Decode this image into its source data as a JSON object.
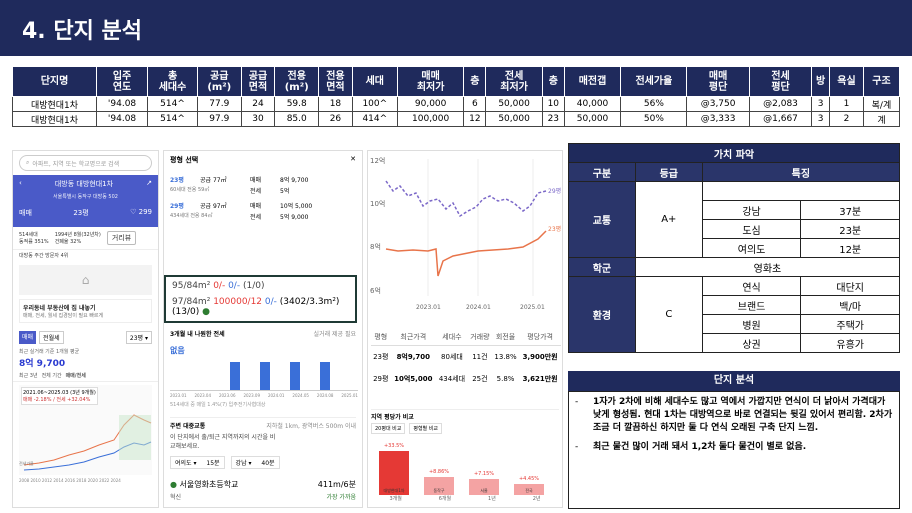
{
  "header": {
    "title": "4. 단지 분석"
  },
  "table": {
    "headers": [
      "단지명",
      "입주\n연도",
      "총\n세대수",
      "공급\n(m²)",
      "공급\n면적",
      "전용\n(m²)",
      "전용\n면적",
      "세대",
      "매매\n최저가",
      "층",
      "전세\n최저가",
      "층",
      "매전갭",
      "전세가율",
      "매매\n평단",
      "전세\n평단",
      "방",
      "욕실",
      "구조"
    ],
    "rows": [
      [
        "대방현대1차",
        "'94.08",
        "514^",
        "77.9",
        "24",
        "59.8",
        "18",
        "100^",
        "90,000",
        "6",
        "50,000",
        "10",
        "40,000",
        "56%",
        "@3,750",
        "@2,083",
        "3",
        "1",
        "복/계"
      ],
      [
        "대방현대1차",
        "'94.08",
        "514^",
        "97.9",
        "30",
        "85.0",
        "26",
        "414^",
        "100,000",
        "12",
        "50,000",
        "23",
        "50,000",
        "50%",
        "@3,333",
        "@1,667",
        "3",
        "2",
        "계"
      ]
    ]
  },
  "app1": {
    "search_placeholder": "아파트, 지역 또는 학교명으로 검색",
    "title": "대방동 대방현대1차",
    "address": "서울특별시 동작구 대방동 502",
    "tabs": [
      "매매",
      "23평",
      "299"
    ],
    "info1": "514세대",
    "info1b": "동적률 351%",
    "info2": "1994년 8월(32년차)",
    "info2b": "건폐율 32%",
    "chip": "거리뷰",
    "nearby": "대방동 주간 방문자 4위",
    "loan_title": "우리동네 부동산에 집 내놓기",
    "loan_desc": "매매, 전세, 월세 집경담이 필요 빠르게",
    "trade_tabs": [
      "매매",
      "전월세"
    ],
    "area_select": "23평",
    "recent": "최근 실거래 기준 1개월 평균",
    "price": "8억 9,700",
    "period_tabs": [
      "최근 3년",
      "전체 기간",
      "매매/전세"
    ],
    "note": "2021.06~2025.03 (3년 9개월)",
    "note2": "매매 -2.18% / 전세 +32.04%",
    "years": "2008 2010 2012 2014 2016 2018 2020 2022 2024",
    "axis_label": "전세가율"
  },
  "app2": {
    "title": "평형 선택",
    "rows": [
      {
        "p": "23평",
        "l1": "공급 77㎡",
        "l2": "매매",
        "v1": "8억 9,700",
        "l3": "전세",
        "v2": "5억"
      },
      {
        "p": "29평",
        "l1": "공급 97㎡",
        "l2": "매매",
        "v1": "10억 5,000",
        "l3": "전세",
        "v2": "5억 9,000"
      }
    ],
    "sub1": "60세대 전용 59㎡",
    "sub2": "434세대 전용 84㎡",
    "box_line1": "95/84m²  0/-  0/-  (1/0)",
    "box_line1_a": "95/84m²",
    "box_line1_b": "0/-",
    "box_line1_c": "0/-",
    "box_line1_d": "(1/0)",
    "box_line2_a": "97/84m²",
    "box_line2_b": "100000/12",
    "box_line2_c": "0/-",
    "box_line2_d": "(3402/3.3m²)(13/0)",
    "section": "3개월 내 나원한 전세",
    "section_right": "실거래 제공 필요",
    "empty": "없음",
    "chart_note": "514세대 중 매일 1.4%(7) 입주전기사협대상",
    "bar_years": [
      "2023.01",
      "2023.04",
      "2023.06",
      "2023.09",
      "2024.01",
      "2024.05",
      "2024.08",
      "2025.01"
    ],
    "commute_title": "주변 대중교통",
    "commute_right": "지하철 1km, 광역버스 500m 이내",
    "commute_desc": "이 단지에서 출/퇴근 지역까지의 시간을 비교해보세요.",
    "commute_rows": [
      {
        "a": "여의도",
        "b": "15분"
      },
      {
        "a": "강남",
        "b": "40분"
      }
    ],
    "school": "서울영화초등학교",
    "school_dist": "411m/6분",
    "school_sub": "혁신",
    "school_tag": "가장 가까움"
  },
  "app3": {
    "y_labels": [
      "12억",
      "10억",
      "8억",
      "6억"
    ],
    "x_labels": [
      "2023.01",
      "2024.01",
      "2025.01"
    ],
    "series_labels": [
      "29평",
      "23평"
    ],
    "table_headers": [
      "평형",
      "최근가격",
      "세대수",
      "거래량",
      "회전율",
      "평당가격"
    ],
    "table_rows": [
      [
        "23평",
        "8억9,700",
        "80세대",
        "11건",
        "13.8%",
        "3,900만원"
      ],
      [
        "29평",
        "10억5,000",
        "434세대",
        "25건",
        "5.8%",
        "3,621만원"
      ]
    ],
    "compare_title": "지역 평당가 비교",
    "compare_tabs": [
      "20평대 비교",
      "평형별 비교"
    ],
    "compare_bars": [
      {
        "label": "대방현대1차",
        "pct": "+33.5%",
        "value": 1.0,
        "color": "#e53935"
      },
      {
        "label": "동작구",
        "pct": "+8.86%",
        "value": 0.42,
        "color": "#f4a3a3"
      },
      {
        "label": "서울",
        "pct": "+7.15%",
        "value": 0.36,
        "color": "#f4a3a3"
      },
      {
        "label": "전국",
        "pct": "+4.45%",
        "value": 0.26,
        "color": "#f4a3a3"
      }
    ],
    "bottom_tabs": [
      "3개월",
      "6개월",
      "1년",
      "2년"
    ]
  },
  "value": {
    "title": "가치 파악",
    "headers": [
      "구분",
      "등급",
      "특징"
    ],
    "transport": {
      "label": "교통",
      "grade": "A+",
      "rows": [
        [
          "강남",
          "37분"
        ],
        [
          "도심",
          "23분"
        ],
        [
          "여의도",
          "12분"
        ]
      ]
    },
    "school": {
      "label": "학군",
      "value": "영화초"
    },
    "env": {
      "label": "환경",
      "grade": "C",
      "rows": [
        [
          "연식",
          "대단지"
        ],
        [
          "브랜드",
          "백/마"
        ],
        [
          "병원",
          "주택가"
        ],
        [
          "상권",
          "유흥가"
        ]
      ]
    }
  },
  "analysis": {
    "title": "단지 분석",
    "items": [
      "1자가 2차에 비해 세대수도 많고 역에서 가깝지만 연식이 더 낡아서 가격대가 낮게 형성됨. 현대 1차는 대방역으로 바로 연결되는 뒷길 있어서 편리함. 2차가 조금 더 깔끔하신 하지만 둘 다 연식 오래된 구축 단지 느낌.",
      "최근 물건 많이 거래 돼서 1,2차 둘다 물건이 별로 없음."
    ]
  },
  "colors": {
    "navy": "#1f2a5c",
    "blue": "#3a6fd8",
    "orange": "#e8744a",
    "purple": "#7b68c8",
    "red": "#e53935"
  }
}
